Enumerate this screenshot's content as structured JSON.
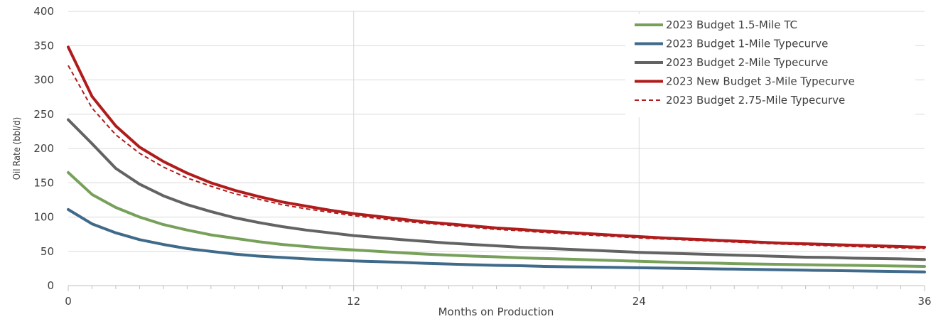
{
  "chart_data": {
    "type": "line",
    "xlabel": "Months on Production",
    "ylabel": "Oil Rate (bbl/d)",
    "xlim": [
      0,
      36
    ],
    "ylim": [
      0,
      400
    ],
    "xticks": [
      0,
      12,
      24,
      36
    ],
    "yticks": [
      0,
      50,
      100,
      150,
      200,
      250,
      300,
      350,
      400
    ],
    "grid": "y-major, x at 12 and 24",
    "legend_position": "top-right",
    "x": [
      0,
      1,
      2,
      3,
      4,
      5,
      6,
      7,
      8,
      9,
      10,
      11,
      12,
      13,
      14,
      15,
      16,
      17,
      18,
      19,
      20,
      21,
      22,
      23,
      24,
      25,
      26,
      27,
      28,
      29,
      30,
      31,
      32,
      33,
      34,
      35,
      36
    ],
    "series": [
      {
        "name": "2023 Budget 1.5-Mile TC",
        "color": "#77a05a",
        "dash": "solid",
        "values": [
          165,
          133,
          114,
          100,
          89,
          81,
          74,
          69,
          64,
          60,
          57,
          54,
          52,
          50,
          48,
          46,
          44.5,
          43,
          42,
          40.5,
          39.5,
          38.5,
          37.5,
          36.5,
          35.5,
          34.5,
          33.5,
          33,
          32,
          31.5,
          31,
          30.5,
          30,
          29.5,
          29,
          28.5,
          28
        ]
      },
      {
        "name": "2023 Budget 1-Mile Typecurve",
        "color": "#3f6a8a",
        "dash": "solid",
        "values": [
          111,
          90,
          77,
          67,
          60,
          54,
          50,
          46,
          43,
          41,
          39,
          37.5,
          36,
          35,
          34,
          32.5,
          31.5,
          30.5,
          29.5,
          29,
          28,
          27.5,
          27,
          26.5,
          26,
          25.5,
          25,
          24.5,
          24,
          23.5,
          23,
          22.5,
          22,
          21.5,
          21,
          20.5,
          20
        ]
      },
      {
        "name": "2023 Budget 2-Mile Typecurve",
        "color": "#636363",
        "dash": "solid",
        "values": [
          242,
          207,
          171,
          148,
          131,
          118,
          108,
          99,
          92,
          86,
          81,
          77,
          73,
          70,
          67,
          64.5,
          62,
          60,
          58,
          56,
          54.5,
          53,
          51.5,
          50,
          48.5,
          47.5,
          46.5,
          45.5,
          44.5,
          43.5,
          42.5,
          41.5,
          41,
          40,
          39.5,
          39,
          38
        ]
      },
      {
        "name": "2023 New Budget 3-Mile Typecurve",
        "color": "#b01c1c",
        "dash": "solid",
        "values": [
          348,
          276,
          233,
          202,
          181,
          164,
          150,
          139,
          130,
          122,
          116,
          110,
          105,
          101,
          97,
          93,
          90,
          87,
          84,
          82,
          79.5,
          77.5,
          75.5,
          73.5,
          71.5,
          69.5,
          68,
          66.5,
          65,
          63.5,
          62,
          61,
          60,
          59,
          58,
          57,
          56
        ]
      },
      {
        "name": "2023 Budget 2.75-Mile Typecurve",
        "color": "#b01c1c",
        "dash": "dashed",
        "values": [
          321,
          259,
          220,
          193,
          173,
          157,
          145,
          134,
          126,
          118,
          112,
          107,
          102,
          98,
          94,
          91,
          88,
          85,
          82,
          80,
          77.5,
          75.5,
          73.5,
          71.5,
          69.5,
          68,
          66.5,
          65,
          63.5,
          62,
          60.5,
          59.5,
          58,
          57,
          56,
          55,
          54
        ]
      }
    ]
  }
}
